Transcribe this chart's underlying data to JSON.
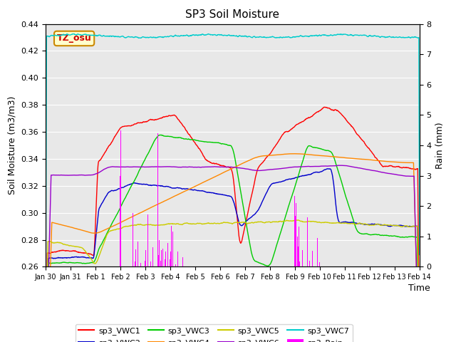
{
  "title": "SP3 Soil Moisture",
  "xlabel": "Time",
  "ylabel_left": "Soil Moisture (m3/m3)",
  "ylabel_right": "Rain (mm)",
  "ylim_left": [
    0.26,
    0.44
  ],
  "ylim_right": [
    0.0,
    8.0
  ],
  "xlim": [
    0,
    15
  ],
  "xtick_labels": [
    "Jan 30",
    "Jan 31",
    "Feb 1",
    "Feb 2",
    "Feb 3",
    "Feb 4",
    "Feb 5",
    "Feb 6",
    "Feb 7",
    "Feb 8",
    "Feb 9",
    "Feb 10",
    "Feb 11",
    "Feb 12",
    "Feb 13",
    "Feb 14"
  ],
  "annotation_box_text": "TZ_osu",
  "colors": {
    "sp3_VWC1": "#ff0000",
    "sp3_VWC2": "#0000cc",
    "sp3_VWC3": "#00cc00",
    "sp3_VWC4": "#ff8800",
    "sp3_VWC5": "#cccc00",
    "sp3_VWC6": "#9900cc",
    "sp3_VWC7": "#00cccc",
    "sp3_Rain": "#ff00ff"
  },
  "plot_bg": "#e8e8e8",
  "fig_bg": "#ffffff",
  "grid_color": "#ffffff"
}
